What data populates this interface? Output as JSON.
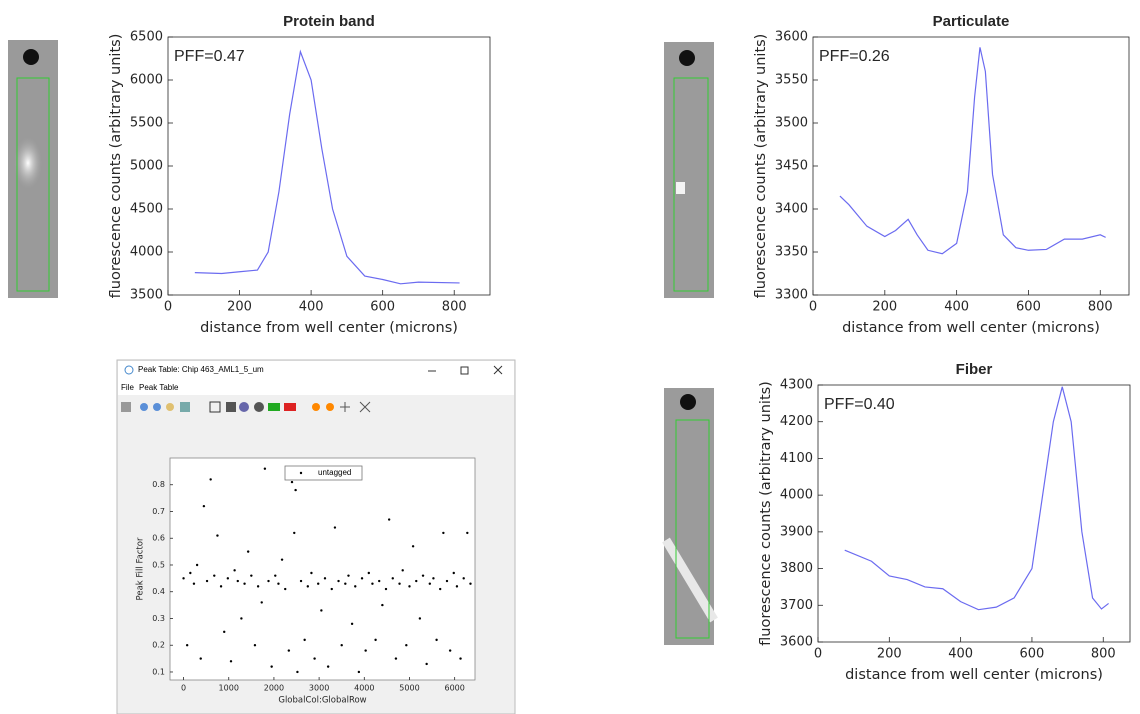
{
  "window": {
    "title": "Peak Table: Chip 463_AML1_5_um",
    "menu": [
      "File",
      "Peak Table"
    ]
  },
  "chart_data": [
    {
      "type": "line",
      "title": "Protein band",
      "annotation": "PFF=0.47",
      "xlabel": "distance from well center (microns)",
      "ylabel": "fluorescence counts (arbitrary units)",
      "color": "#6b6bf0",
      "x": [
        75,
        150,
        200,
        250,
        280,
        310,
        340,
        370,
        400,
        430,
        460,
        500,
        550,
        600,
        650,
        700,
        815
      ],
      "values": [
        3760,
        3750,
        3770,
        3790,
        4000,
        4700,
        5600,
        6330,
        6000,
        5200,
        4500,
        3950,
        3720,
        3680,
        3630,
        3650,
        3640
      ],
      "xlim": [
        0,
        900
      ],
      "ylim": [
        3500,
        6500
      ],
      "xticks": [
        0,
        200,
        400,
        600,
        800
      ],
      "yticks": [
        3500,
        4000,
        4500,
        5000,
        5500,
        6000,
        6500
      ]
    },
    {
      "type": "line",
      "title": "Particulate",
      "annotation": "PFF=0.26",
      "xlabel": "distance from well center (microns)",
      "ylabel": "fluorescence counts (arbitrary units)",
      "color": "#6b6bf0",
      "x": [
        75,
        100,
        150,
        200,
        230,
        265,
        290,
        320,
        360,
        400,
        430,
        450,
        465,
        480,
        500,
        530,
        565,
        600,
        650,
        700,
        750,
        800,
        815
      ],
      "values": [
        3415,
        3405,
        3380,
        3368,
        3375,
        3388,
        3370,
        3352,
        3348,
        3360,
        3420,
        3530,
        3588,
        3560,
        3440,
        3370,
        3355,
        3352,
        3353,
        3365,
        3365,
        3370,
        3367
      ],
      "xlim": [
        0,
        880
      ],
      "ylim": [
        3300,
        3600
      ],
      "xticks": [
        0,
        200,
        400,
        600,
        800
      ],
      "yticks": [
        3300,
        3350,
        3400,
        3450,
        3500,
        3550,
        3600
      ]
    },
    {
      "type": "line",
      "title": "Fiber",
      "annotation": "PFF=0.40",
      "xlabel": "distance from well center (microns)",
      "ylabel": "fluorescence counts (arbitrary units)",
      "color": "#6b6bf0",
      "x": [
        75,
        150,
        200,
        250,
        300,
        350,
        400,
        450,
        500,
        550,
        600,
        630,
        660,
        685,
        710,
        740,
        770,
        795,
        815
      ],
      "values": [
        3850,
        3820,
        3780,
        3770,
        3750,
        3745,
        3710,
        3688,
        3695,
        3720,
        3800,
        4000,
        4200,
        4295,
        4200,
        3900,
        3720,
        3690,
        3705
      ],
      "xlim": [
        0,
        875
      ],
      "ylim": [
        3600,
        4300
      ],
      "xticks": [
        0,
        200,
        400,
        600,
        800
      ],
      "yticks": [
        3600,
        3700,
        3800,
        3900,
        4000,
        4100,
        4200,
        4300
      ]
    },
    {
      "type": "scatter",
      "xlabel": "GlobalCol:GlobalRow",
      "ylabel": "Peak Fill Factor",
      "x": [
        0,
        80,
        150,
        230,
        300,
        380,
        450,
        520,
        600,
        680,
        750,
        830,
        900,
        980,
        1050,
        1130,
        1200,
        1280,
        1350,
        1430,
        1500,
        1580,
        1650,
        1730,
        1800,
        1880,
        1950,
        2030,
        2100,
        2180,
        2250,
        2330,
        2400,
        2450,
        2480,
        2520,
        2600,
        2680,
        2750,
        2830,
        2900,
        2980,
        3050,
        3130,
        3200,
        3280,
        3350,
        3430,
        3500,
        3580,
        3650,
        3730,
        3800,
        3880,
        3950,
        4030,
        4100,
        4180,
        4250,
        4330,
        4400,
        4480,
        4550,
        4630,
        4700,
        4780,
        4850,
        4930,
        5000,
        5080,
        5150,
        5230,
        5300,
        5380,
        5450,
        5530,
        5600,
        5680,
        5750,
        5830,
        5900,
        5980,
        6050,
        6130,
        6200,
        6280,
        6350
      ],
      "series": [
        {
          "name": "untagged",
          "color": "#000000",
          "values": [
            0.45,
            0.2,
            0.47,
            0.43,
            0.5,
            0.15,
            0.72,
            0.44,
            0.82,
            0.46,
            0.61,
            0.42,
            0.25,
            0.45,
            0.14,
            0.48,
            0.44,
            0.3,
            0.43,
            0.55,
            0.46,
            0.2,
            0.42,
            0.36,
            0.86,
            0.44,
            0.12,
            0.46,
            0.43,
            0.52,
            0.41,
            0.18,
            0.81,
            0.62,
            0.78,
            0.1,
            0.44,
            0.22,
            0.42,
            0.47,
            0.15,
            0.43,
            0.33,
            0.45,
            0.12,
            0.41,
            0.64,
            0.44,
            0.2,
            0.43,
            0.46,
            0.28,
            0.42,
            0.1,
            0.45,
            0.18,
            0.47,
            0.43,
            0.22,
            0.44,
            0.35,
            0.41,
            0.67,
            0.45,
            0.15,
            0.43,
            0.48,
            0.2,
            0.42,
            0.57,
            0.44,
            0.3,
            0.46,
            0.13,
            0.43,
            0.45,
            0.22,
            0.41,
            0.62,
            0.44,
            0.18,
            0.47,
            0.42,
            0.15,
            0.45,
            0.62,
            0.43
          ]
        }
      ],
      "xlim": [
        -300,
        6450
      ],
      "ylim": [
        0.07,
        0.9
      ],
      "xticks": [
        0,
        1000,
        2000,
        3000,
        4000,
        5000,
        6000
      ],
      "yticks": [
        0.1,
        0.2,
        0.3,
        0.4,
        0.5,
        0.6,
        0.7,
        0.8
      ]
    }
  ]
}
